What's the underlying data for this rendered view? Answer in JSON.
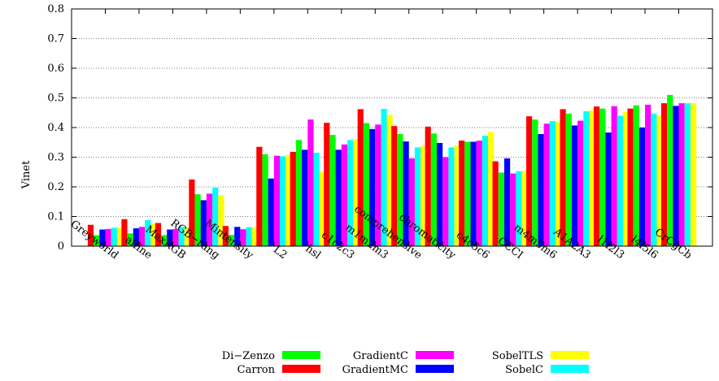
{
  "chart_data": {
    "type": "bar",
    "ylabel": "Vinet",
    "xlabel": "",
    "ylim": [
      0,
      0.8
    ],
    "yticks": [
      "0",
      "0.1",
      "0.2",
      "0.3",
      "0.4",
      "0.5",
      "0.6",
      "0.7",
      "0.8"
    ],
    "grid": "horizontal dotted",
    "legend_position": "bottom",
    "categories": [
      "Greyworld",
      "affine",
      "MaxRGB",
      "RGB−rang",
      "Mintensity",
      "L2",
      "hsl",
      "c1c2c3",
      "m1m2m3",
      "comprehensive",
      "chromaticity",
      "c4c5c6",
      "CCCI",
      "m4m5m6",
      "A1A2A3",
      "l1l2l3",
      "l4l5l6",
      "CrCgCb"
    ],
    "series": [
      {
        "name": "Carron",
        "color": "#ff0000",
        "values": [
          0.072,
          0.091,
          0.078,
          0.225,
          0.068,
          0.335,
          0.318,
          0.416,
          0.462,
          0.405,
          0.403,
          0.356,
          0.286,
          0.438,
          0.462,
          0.471,
          0.464,
          0.482
        ]
      },
      {
        "name": "Di−Zenzo",
        "color": "#00ff00",
        "values": [
          0.037,
          0.043,
          0.037,
          0.175,
          0.038,
          0.31,
          0.358,
          0.375,
          0.415,
          0.378,
          0.38,
          0.352,
          0.248,
          0.427,
          0.447,
          0.464,
          0.475,
          0.51
        ]
      },
      {
        "name": "GradientMC",
        "color": "#0000ff",
        "values": [
          0.056,
          0.06,
          0.056,
          0.155,
          0.065,
          0.228,
          0.325,
          0.325,
          0.395,
          0.353,
          0.348,
          0.352,
          0.296,
          0.378,
          0.407,
          0.383,
          0.4,
          0.473
        ]
      },
      {
        "name": "GradientC",
        "color": "#ff00ff",
        "values": [
          0.058,
          0.065,
          0.058,
          0.177,
          0.057,
          0.305,
          0.427,
          0.343,
          0.41,
          0.296,
          0.3,
          0.356,
          0.245,
          0.413,
          0.423,
          0.472,
          0.477,
          0.482
        ]
      },
      {
        "name": "SobelC",
        "color": "#00ffff",
        "values": [
          0.062,
          0.088,
          0.065,
          0.197,
          0.064,
          0.303,
          0.315,
          0.358,
          0.463,
          0.333,
          0.333,
          0.372,
          0.253,
          0.422,
          0.455,
          0.44,
          0.447,
          0.482
        ]
      },
      {
        "name": "SobelTLS",
        "color": "#ffff00",
        "values": [
          0.062,
          0.075,
          0.065,
          0.172,
          0.063,
          0.307,
          0.25,
          0.36,
          0.443,
          0.338,
          0.34,
          0.385,
          0.253,
          0.418,
          0.458,
          0.452,
          0.44,
          0.482
        ]
      }
    ]
  },
  "legend": {
    "columns": [
      [
        "Di−Zenzo",
        "Carron"
      ],
      [
        "GradientC",
        "GradientMC"
      ],
      [
        "SobelTLS",
        "SobelC"
      ]
    ]
  }
}
